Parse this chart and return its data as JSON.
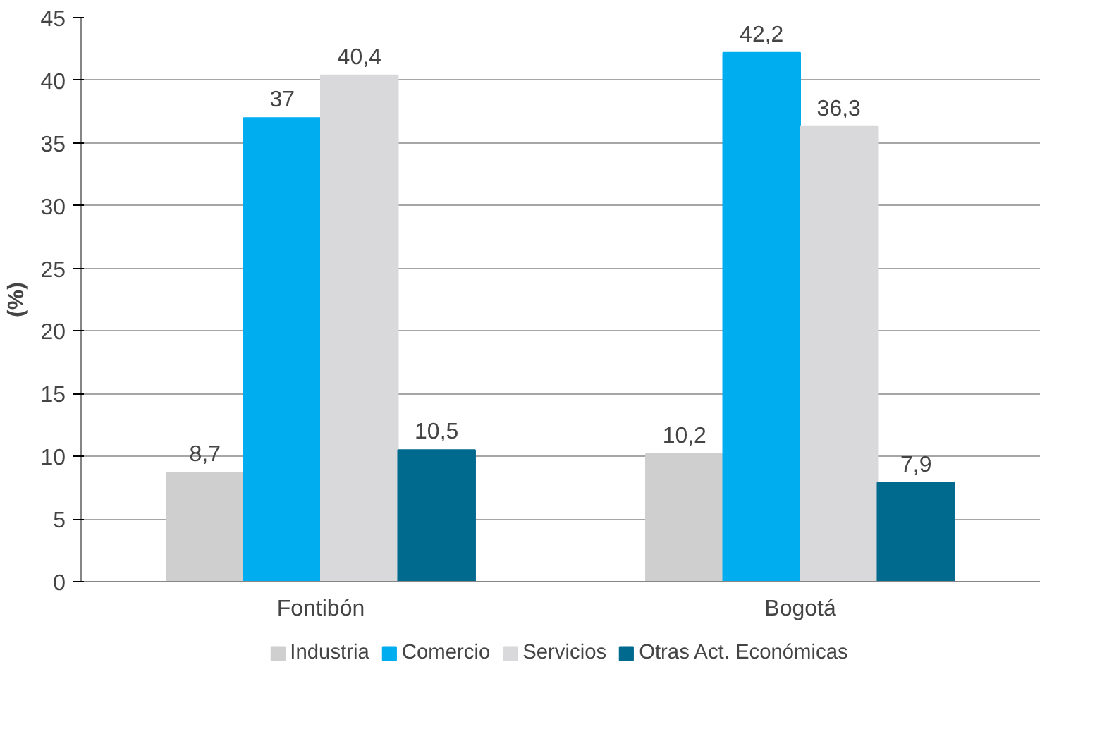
{
  "chart_data": {
    "type": "bar",
    "ylabel": "(%)",
    "categories": [
      "Fontibón",
      "Bogotá"
    ],
    "series": [
      {
        "name": "Industria",
        "color": "#cfcfcf",
        "values": [
          8.7,
          10.2
        ],
        "value_labels": [
          "8,7",
          "10,2"
        ]
      },
      {
        "name": "Comercio",
        "color": "#00aeef",
        "values": [
          37,
          42.2
        ],
        "value_labels": [
          "37",
          "42,2"
        ]
      },
      {
        "name": "Servicios",
        "color": "#d9d9db",
        "values": [
          40.4,
          36.3
        ],
        "value_labels": [
          "40,4",
          "36,3"
        ]
      },
      {
        "name": "Otras Act. Económicas",
        "color": "#006a8e",
        "values": [
          10.5,
          7.9
        ],
        "value_labels": [
          "10,5",
          "7,9"
        ]
      }
    ],
    "ylim": [
      0,
      45
    ],
    "yticks": [
      0,
      5,
      10,
      15,
      20,
      25,
      30,
      35,
      40,
      45
    ],
    "grid": "y",
    "legend": "bottom"
  }
}
